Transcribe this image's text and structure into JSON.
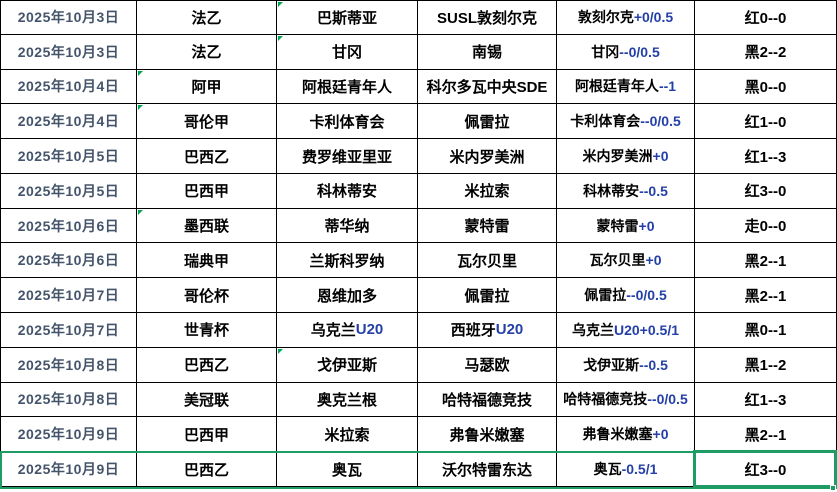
{
  "table": {
    "columns": [
      "date",
      "league",
      "home",
      "away",
      "handicap",
      "result"
    ],
    "rows": [
      {
        "date": "2025年10月3日",
        "league": "法乙",
        "home": "巴斯蒂亚",
        "away": "SUSL敦刻尔克",
        "handicap": "敦刻尔克+0/0.5",
        "result": "红0--0"
      },
      {
        "date": "2025年10月3日",
        "league": "法乙",
        "home": "甘冈",
        "away": "南锡",
        "handicap": "甘冈--0/0.5",
        "result": "黑2--2"
      },
      {
        "date": "2025年10月4日",
        "league": "阿甲",
        "home": "阿根廷青年人",
        "away": "科尔多瓦中央SDE",
        "handicap": "阿根廷青年人--1",
        "result": "黑0--0"
      },
      {
        "date": "2025年10月4日",
        "league": "哥伦甲",
        "home": "卡利体育会",
        "away": "佩雷拉",
        "handicap": "卡利体育会 --0/0.5",
        "result": "红1--0"
      },
      {
        "date": "2025年10月5日",
        "league": "巴西乙",
        "home": "费罗维亚里亚",
        "away": "米内罗美洲",
        "handicap": "米内罗美洲+0",
        "result": "红1--3"
      },
      {
        "date": "2025年10月5日",
        "league": "巴西甲",
        "home": "科林蒂安",
        "away": "米拉索",
        "handicap": "科林蒂安--0.5",
        "result": "红3--0"
      },
      {
        "date": "2025年10月6日",
        "league": "墨西联",
        "home": "蒂华纳",
        "away": "蒙特雷",
        "handicap": "蒙特雷+0",
        "result": "走0--0"
      },
      {
        "date": "2025年10月6日",
        "league": "瑞典甲",
        "home": "兰斯科罗纳",
        "away": "瓦尔贝里",
        "handicap": "瓦尔贝里+0",
        "result": "黑2--1"
      },
      {
        "date": "2025年10月7日",
        "league": "哥伦杯",
        "home": "恩维加多",
        "away": "佩雷拉",
        "handicap": "佩雷拉--0/0.5",
        "result": "黑2--1"
      },
      {
        "date": "2025年10月7日",
        "league": "世青杯",
        "home": "乌克兰U20",
        "away": "西班牙U20",
        "handicap": "乌克兰U20+0.5/1",
        "result": "黑0--1"
      },
      {
        "date": "2025年10月8日",
        "league": "巴西乙",
        "home": "戈伊亚斯",
        "away": "马瑟欧",
        "handicap": "戈伊亚斯--0.5",
        "result": "黑1--2"
      },
      {
        "date": "2025年10月8日",
        "league": "美冠联",
        "home": "奥克兰根",
        "away": "哈特福德竞技",
        "handicap": "哈特福德竞技--0/0.5",
        "result": "红1--3"
      },
      {
        "date": "2025年10月9日",
        "league": "巴西甲",
        "home": "米拉索",
        "away": "弗鲁米嫩塞",
        "handicap": "弗鲁米嫩塞+0",
        "result": "黑2--1"
      },
      {
        "date": "2025年10月9日",
        "league": "巴西乙",
        "home": "奥瓦",
        "away": "沃尔特雷东达",
        "handicap": "奥瓦-0.5/1",
        "result": "红3--0"
      }
    ],
    "flagged_cells": [
      {
        "row": 0,
        "col": 2
      },
      {
        "row": 1,
        "col": 2
      },
      {
        "row": 2,
        "col": 1
      },
      {
        "row": 3,
        "col": 1
      },
      {
        "row": 6,
        "col": 1
      },
      {
        "row": 10,
        "col": 2
      }
    ],
    "selected_row_index": 13,
    "selected_cell": {
      "row": 13,
      "col": 5
    }
  },
  "colors": {
    "date_text": "#44546A",
    "body_text": "#000000",
    "ascii_blue": "#2440A8",
    "selection_green": "#1E9C64",
    "flag_green": "#00A652",
    "grid_line": "#000000",
    "background": "#FFFFFF"
  }
}
